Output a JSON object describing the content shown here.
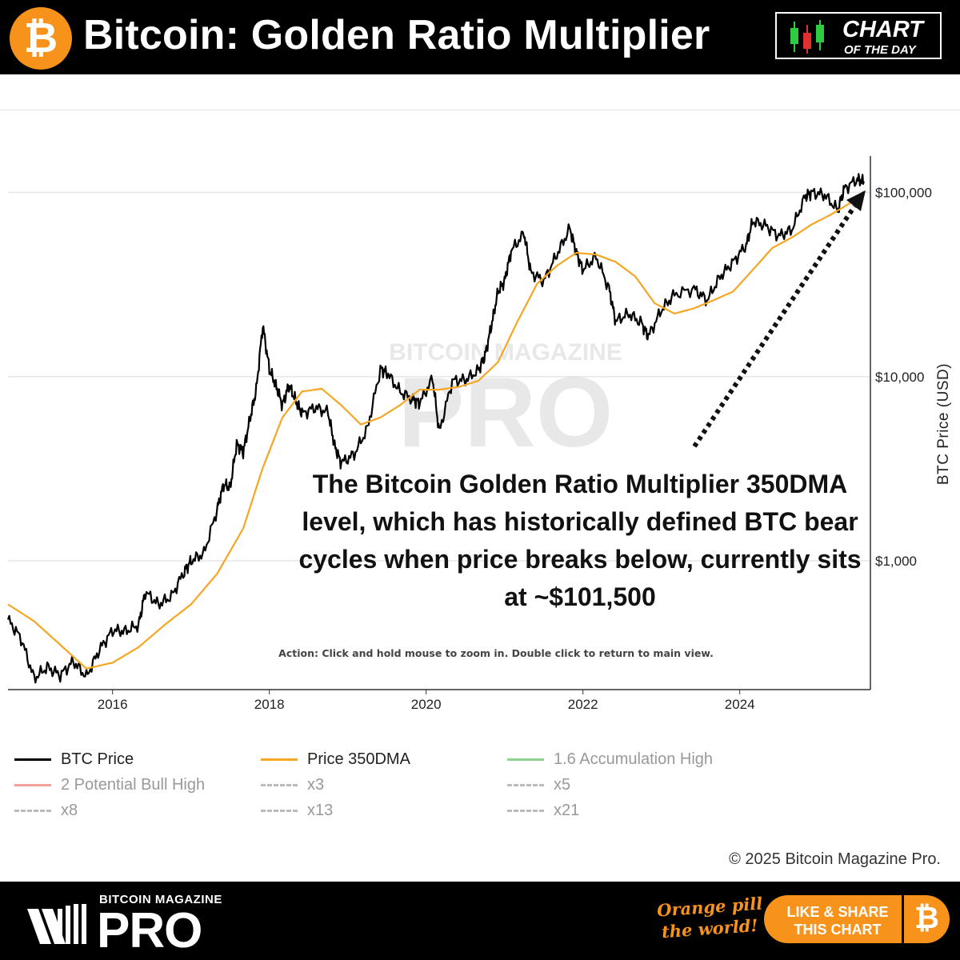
{
  "header": {
    "title": "Bitcoin: Golden Ratio Multiplier",
    "btc_symbol": "₿",
    "badge_line1": "CHART",
    "badge_line2": "OF THE DAY"
  },
  "chart_data": {
    "type": "line",
    "ylabel": "BTC Price (USD)",
    "yscale": "log",
    "ylim": [
      200,
      150000
    ],
    "xlim": [
      "2014-09",
      "2025-09"
    ],
    "x_ticks": [
      "2016",
      "2018",
      "2020",
      "2022",
      "2024"
    ],
    "y_ticks": [
      {
        "value": 1000,
        "label": "$1,000"
      },
      {
        "value": 10000,
        "label": "$10,000"
      },
      {
        "value": 100000,
        "label": "$100,000"
      }
    ],
    "watermark": {
      "top": "BITCOIN MAGAZINE",
      "main": "PRO"
    },
    "series": [
      {
        "name": "BTC Price",
        "color": "#000000",
        "points": [
          [
            "2014-09",
            480
          ],
          [
            "2014-11",
            380
          ],
          [
            "2015-01",
            230
          ],
          [
            "2015-03",
            265
          ],
          [
            "2015-05",
            240
          ],
          [
            "2015-07",
            285
          ],
          [
            "2015-09",
            235
          ],
          [
            "2015-11",
            330
          ],
          [
            "2016-01",
            420
          ],
          [
            "2016-03",
            415
          ],
          [
            "2016-05",
            450
          ],
          [
            "2016-06",
            680
          ],
          [
            "2016-08",
            580
          ],
          [
            "2016-10",
            640
          ],
          [
            "2016-12",
            880
          ],
          [
            "2017-01",
            1000
          ],
          [
            "2017-03",
            1100
          ],
          [
            "2017-05",
            1900
          ],
          [
            "2017-06",
            2600
          ],
          [
            "2017-07",
            2500
          ],
          [
            "2017-08",
            4300
          ],
          [
            "2017-09",
            3900
          ],
          [
            "2017-10",
            5800
          ],
          [
            "2017-11",
            8500
          ],
          [
            "2017-12",
            19000
          ],
          [
            "2018-01",
            11000
          ],
          [
            "2018-02",
            9000
          ],
          [
            "2018-03",
            7000
          ],
          [
            "2018-04",
            9000
          ],
          [
            "2018-05",
            7500
          ],
          [
            "2018-06",
            6300
          ],
          [
            "2018-08",
            6800
          ],
          [
            "2018-10",
            6400
          ],
          [
            "2018-11",
            4200
          ],
          [
            "2018-12",
            3400
          ],
          [
            "2019-02",
            3800
          ],
          [
            "2019-04",
            5200
          ],
          [
            "2019-06",
            11000
          ],
          [
            "2019-07",
            10500
          ],
          [
            "2019-09",
            8300
          ],
          [
            "2019-11",
            7500
          ],
          [
            "2019-12",
            7200
          ],
          [
            "2020-02",
            9800
          ],
          [
            "2020-03",
            5000
          ],
          [
            "2020-05",
            9500
          ],
          [
            "2020-07",
            9600
          ],
          [
            "2020-09",
            10800
          ],
          [
            "2020-10",
            13000
          ],
          [
            "2020-11",
            19000
          ],
          [
            "2020-12",
            29000
          ],
          [
            "2021-01",
            33000
          ],
          [
            "2021-02",
            48000
          ],
          [
            "2021-04",
            60000
          ],
          [
            "2021-05",
            37000
          ],
          [
            "2021-07",
            33000
          ],
          [
            "2021-09",
            46000
          ],
          [
            "2021-11",
            64000
          ],
          [
            "2021-12",
            47000
          ],
          [
            "2022-01",
            38000
          ],
          [
            "2022-03",
            45000
          ],
          [
            "2022-05",
            30000
          ],
          [
            "2022-06",
            20000
          ],
          [
            "2022-08",
            22000
          ],
          [
            "2022-10",
            19500
          ],
          [
            "2022-11",
            16500
          ],
          [
            "2023-01",
            23000
          ],
          [
            "2023-03",
            28000
          ],
          [
            "2023-06",
            30000
          ],
          [
            "2023-08",
            26000
          ],
          [
            "2023-10",
            35000
          ],
          [
            "2023-12",
            42000
          ],
          [
            "2024-02",
            52000
          ],
          [
            "2024-03",
            70000
          ],
          [
            "2024-05",
            66000
          ],
          [
            "2024-07",
            58000
          ],
          [
            "2024-09",
            63000
          ],
          [
            "2024-11",
            95000
          ],
          [
            "2024-12",
            100000
          ],
          [
            "2025-02",
            97000
          ],
          [
            "2025-04",
            80000
          ],
          [
            "2025-05",
            105000
          ],
          [
            "2025-07",
            118000
          ],
          [
            "2025-08",
            115000
          ]
        ]
      },
      {
        "name": "Price 350DMA",
        "color": "#f5a623",
        "points": [
          [
            "2014-09",
            580
          ],
          [
            "2015-01",
            470
          ],
          [
            "2015-05",
            350
          ],
          [
            "2015-09",
            260
          ],
          [
            "2016-01",
            280
          ],
          [
            "2016-05",
            340
          ],
          [
            "2016-09",
            450
          ],
          [
            "2017-01",
            580
          ],
          [
            "2017-05",
            850
          ],
          [
            "2017-09",
            1500
          ],
          [
            "2017-12",
            3200
          ],
          [
            "2018-03",
            6000
          ],
          [
            "2018-06",
            8300
          ],
          [
            "2018-09",
            8600
          ],
          [
            "2018-12",
            7000
          ],
          [
            "2019-03",
            5500
          ],
          [
            "2019-06",
            6000
          ],
          [
            "2019-09",
            7000
          ],
          [
            "2019-12",
            8500
          ],
          [
            "2020-03",
            8500
          ],
          [
            "2020-06",
            8800
          ],
          [
            "2020-09",
            9500
          ],
          [
            "2020-12",
            12000
          ],
          [
            "2021-03",
            20000
          ],
          [
            "2021-06",
            32000
          ],
          [
            "2021-09",
            40000
          ],
          [
            "2021-12",
            47000
          ],
          [
            "2022-03",
            46000
          ],
          [
            "2022-06",
            42000
          ],
          [
            "2022-09",
            35000
          ],
          [
            "2022-12",
            25000
          ],
          [
            "2023-03",
            22000
          ],
          [
            "2023-06",
            23500
          ],
          [
            "2023-09",
            26000
          ],
          [
            "2023-12",
            29000
          ],
          [
            "2024-03",
            38000
          ],
          [
            "2024-06",
            50000
          ],
          [
            "2024-09",
            57000
          ],
          [
            "2024-12",
            67000
          ],
          [
            "2025-03",
            76000
          ],
          [
            "2025-06",
            88000
          ],
          [
            "2025-08",
            101500
          ]
        ]
      }
    ],
    "legend": [
      {
        "name": "BTC Price",
        "color": "#000000",
        "style": "solid",
        "active": true
      },
      {
        "name": "Price 350DMA",
        "color": "#f5a623",
        "style": "solid",
        "active": true
      },
      {
        "name": "1.6 Accumulation High",
        "color": "#8fd18f",
        "style": "solid",
        "active": false
      },
      {
        "name": "2 Potential Bull High",
        "color": "#f2a09a",
        "style": "solid",
        "active": false
      },
      {
        "name": "x3",
        "color": "#bbbbbb",
        "style": "dashed",
        "active": false
      },
      {
        "name": "x5",
        "color": "#bbbbbb",
        "style": "dashed",
        "active": false
      },
      {
        "name": "x8",
        "color": "#bbbbbb",
        "style": "dashed",
        "active": false
      },
      {
        "name": "x13",
        "color": "#bbbbbb",
        "style": "dashed",
        "active": false
      },
      {
        "name": "x21",
        "color": "#bbbbbb",
        "style": "dashed",
        "active": false
      }
    ],
    "annotation": "The Bitcoin Golden Ratio Multiplier 350DMA level, which has historically defined BTC bear cycles when price breaks below, currently sits at ~$101,500",
    "action_note": "Action: Click and hold mouse to zoom in.  Double click to return to main view."
  },
  "copyright": "© 2025 Bitcoin Magazine Pro.",
  "footer": {
    "brand_top": "BITCOIN MAGAZINE",
    "brand_main": "PRO",
    "tagline_line1": "Orange pill",
    "tagline_line2": "the world!",
    "share_line1": "LIKE & SHARE",
    "share_line2": "THIS CHART",
    "btc_symbol": "₿"
  },
  "colors": {
    "accent": "#f7931a",
    "header_bg": "#000000"
  }
}
